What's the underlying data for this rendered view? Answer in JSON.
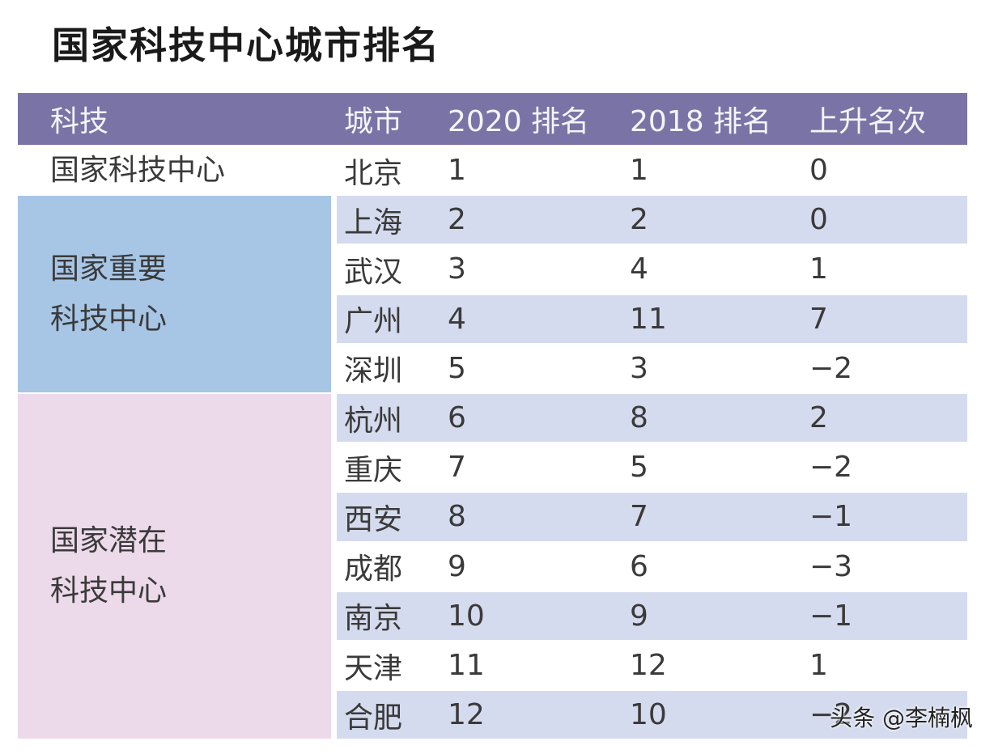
{
  "title": "国家科技中心城市排名",
  "table": {
    "header": [
      "科技",
      "城市",
      "2020 排名",
      "2018 排名",
      "上升名次"
    ],
    "groups": [
      {
        "label": [
          "国家科技中心"
        ],
        "rows": [
          [
            "北京",
            "1",
            "1",
            "0"
          ]
        ]
      },
      {
        "label": [
          "国家重要",
          "科技中心"
        ],
        "rows": [
          [
            "上海",
            "2",
            "2",
            "0"
          ],
          [
            "武汉",
            "3",
            "4",
            "1"
          ],
          [
            "广州",
            "4",
            "11",
            "7"
          ],
          [
            "深圳",
            "5",
            "3",
            "−2"
          ]
        ]
      },
      {
        "label": [
          "国家潜在",
          "科技中心"
        ],
        "rows": [
          [
            "杭州",
            "6",
            "8",
            "2"
          ],
          [
            "重庆",
            "7",
            "5",
            "−2"
          ],
          [
            "西安",
            "8",
            "7",
            "−1"
          ],
          [
            "成都",
            "9",
            "6",
            "−3"
          ],
          [
            "南京",
            "10",
            "9",
            "−1"
          ],
          [
            "天津",
            "11",
            "12",
            "1"
          ],
          [
            "合肥",
            "12",
            "10",
            "−2"
          ]
        ]
      }
    ]
  },
  "watermark": "头条 @李楠枫"
}
